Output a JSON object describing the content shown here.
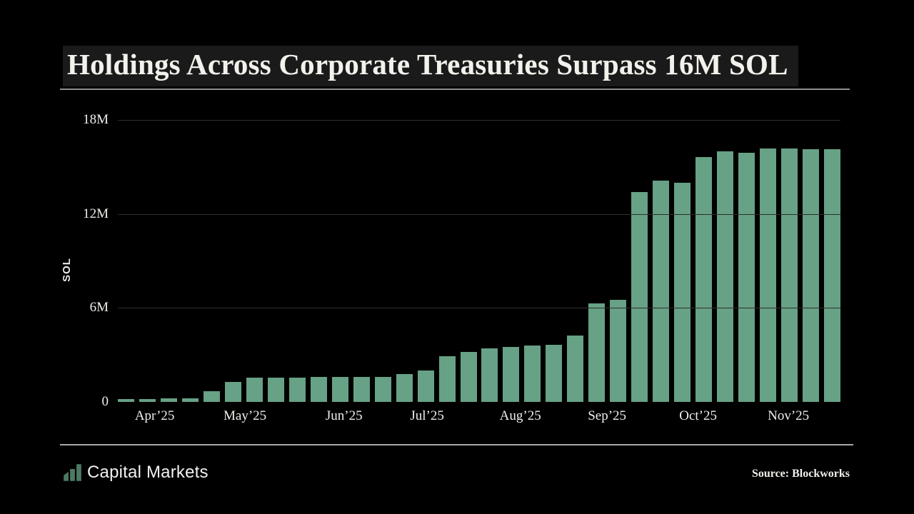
{
  "header": {
    "title": "Holdings Across Corporate Treasuries Surpass 16M SOL"
  },
  "footer": {
    "brand": "Capital Markets",
    "brand_icon": "rising-bars-icon",
    "source": "Source: Blockworks"
  },
  "colors": {
    "background": "#000000",
    "title_panel": "#1a1a1a",
    "bar": "#67a186",
    "gridline": "#2e2e2e",
    "rule": "#a8a8a8",
    "text": "#f0efeb",
    "logo_green": "#4d7a63"
  },
  "chart_data": {
    "type": "bar",
    "title": "Holdings Across Corporate Treasuries Surpass 16M SOL",
    "xlabel": "",
    "ylabel": "SOL",
    "unit": "millions of SOL",
    "x_frequency": "weekly",
    "ylim": [
      0,
      18
    ],
    "grid": "horizontal-only",
    "legend": "none",
    "yticks": [
      {
        "label": "18M",
        "value": 18
      },
      {
        "label": "12M",
        "value": 12
      },
      {
        "label": "6M",
        "value": 6
      },
      {
        "label": "0",
        "value": 0
      }
    ],
    "month_ticks": [
      {
        "label": "Apr’25",
        "pos": 0.051
      },
      {
        "label": "May’25",
        "pos": 0.176
      },
      {
        "label": "Jun’25",
        "pos": 0.313
      },
      {
        "label": "Jul’25",
        "pos": 0.428
      },
      {
        "label": "Aug’25",
        "pos": 0.557
      },
      {
        "label": "Sep’25",
        "pos": 0.677
      },
      {
        "label": "Oct’25",
        "pos": 0.803
      },
      {
        "label": "Nov’25",
        "pos": 0.928
      }
    ],
    "values": [
      0.2,
      0.2,
      0.25,
      0.25,
      0.7,
      1.3,
      1.55,
      1.55,
      1.55,
      1.6,
      1.6,
      1.6,
      1.6,
      1.8,
      2.0,
      2.9,
      3.2,
      3.4,
      3.5,
      3.6,
      3.65,
      4.25,
      6.3,
      6.5,
      13.4,
      14.1,
      14.0,
      15.6,
      16.0,
      15.9,
      16.15,
      16.15,
      16.1,
      16.1
    ]
  }
}
